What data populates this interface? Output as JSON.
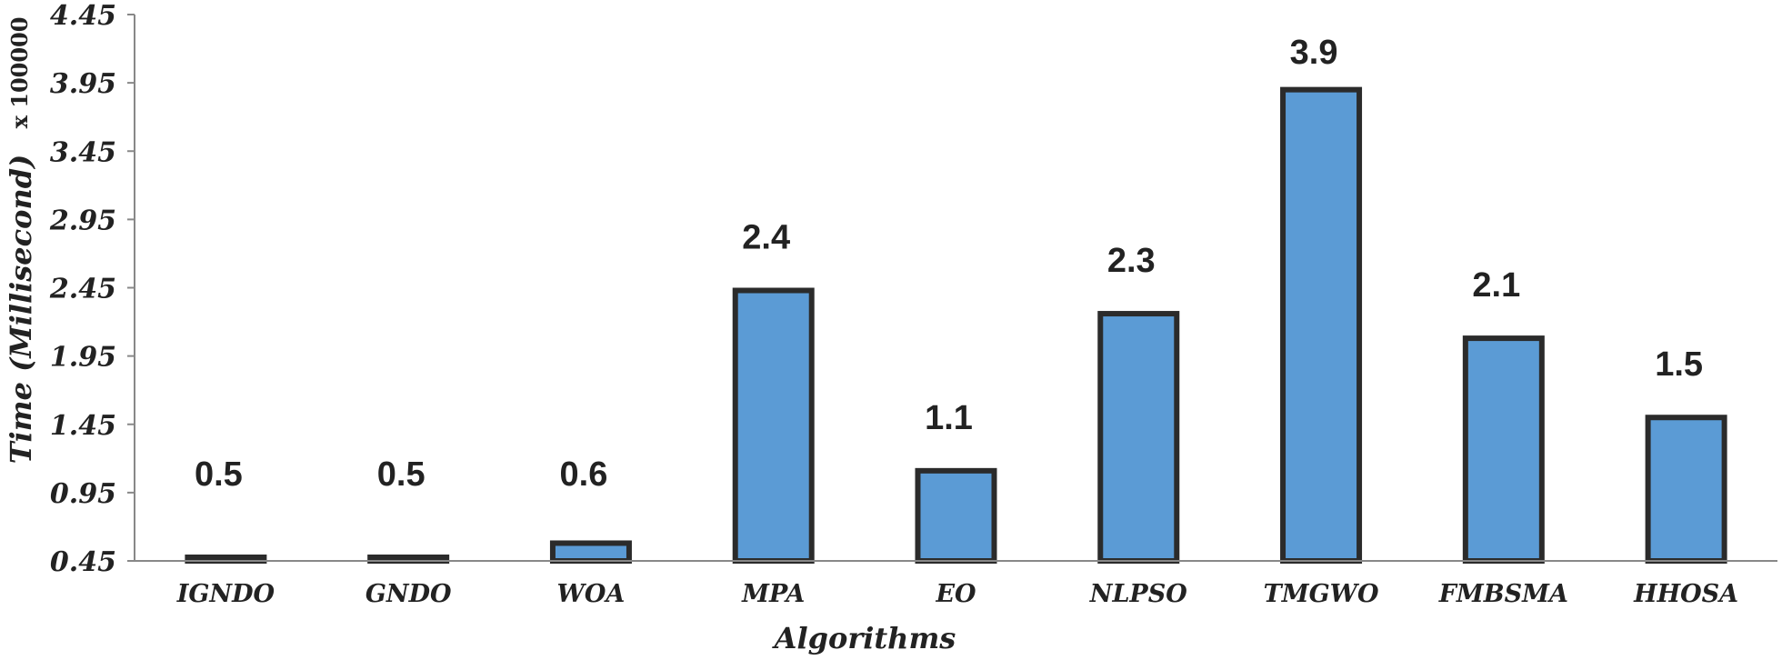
{
  "chart_data": {
    "type": "bar",
    "title": "",
    "xlabel": "Algorithms",
    "ylabel": "Time (Millisecond)",
    "ylabel_multiplier": "x 100000",
    "categories": [
      "IGNDO",
      "GNDO",
      "WOA",
      "MPA",
      "EO",
      "NLPSO",
      "TMGWO",
      "FMBSMA",
      "HHOSA"
    ],
    "values": [
      0.46,
      0.45,
      0.58,
      2.43,
      1.11,
      2.26,
      3.9,
      2.08,
      1.5
    ],
    "data_labels": [
      "0.5",
      "0.5",
      "0.6",
      "2.4",
      "1.1",
      "2.3",
      "3.9",
      "2.1",
      "1.5"
    ],
    "yticks": [
      "0.45",
      "0.95",
      "1.45",
      "1.95",
      "2.45",
      "2.95",
      "3.45",
      "3.95",
      "4.45"
    ],
    "ylim": [
      0.45,
      4.45
    ],
    "grid": false,
    "legend": "none",
    "colors": {
      "bar_fill": "#5b9bd5",
      "bar_border": "#2b2b2b",
      "axis": "#888888",
      "text": "#222222"
    }
  }
}
